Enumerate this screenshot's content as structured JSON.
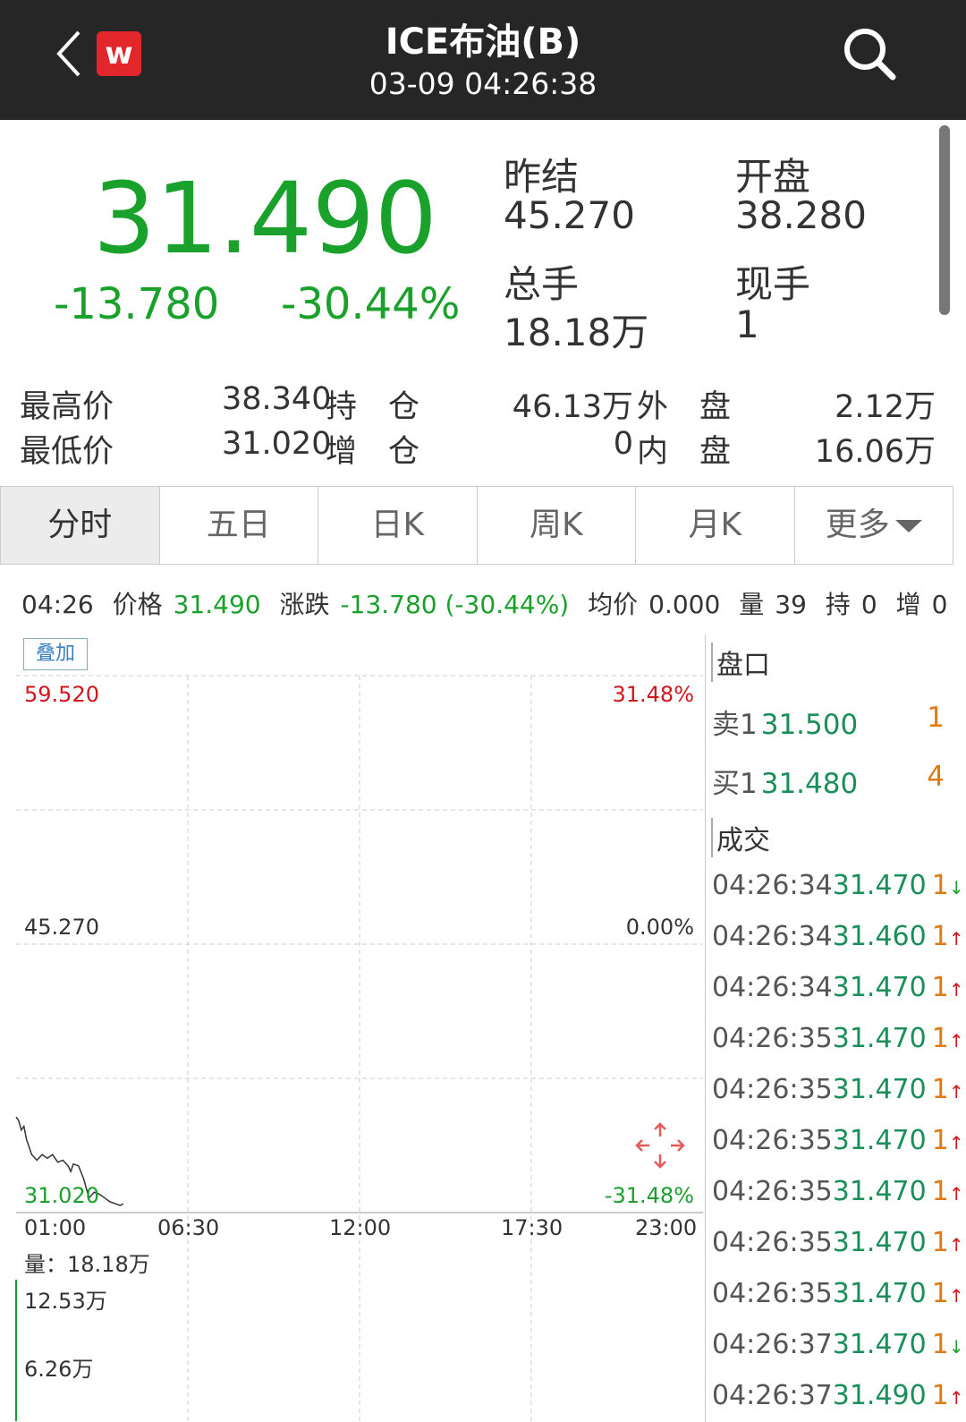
{
  "header": {
    "title": "ICE布油(B)",
    "datetime": "03-09 04:26:38",
    "logo_text": "w"
  },
  "quote": {
    "price": "31.490",
    "change": "-13.780",
    "change_pct": "-30.44%",
    "prev_settle_label": "昨结",
    "prev_settle": "45.270",
    "open_label": "开盘",
    "open": "38.280",
    "volume_label": "总手",
    "volume": "18.18万",
    "current_label": "现手",
    "current": "1",
    "high_label": "最高价",
    "high": "38.340",
    "low_label": "最低价",
    "low": "31.020",
    "oi_label": "持　仓",
    "oi": "46.13万",
    "oi_chg_label": "增　仓",
    "oi_chg": "0",
    "outer_label": "外　盘",
    "outer": "2.12万",
    "inner_label": "内　盘",
    "inner": "16.06万"
  },
  "tabs": [
    {
      "label": "分时",
      "active": true
    },
    {
      "label": "五日"
    },
    {
      "label": "日K"
    },
    {
      "label": "周K"
    },
    {
      "label": "月K"
    },
    {
      "label": "更多"
    }
  ],
  "info_bar": {
    "time": "04:26",
    "price_label": "价格",
    "price": "31.490",
    "chg_label": "涨跌",
    "chg": "-13.780 (-30.44%)",
    "avg_label": "均价",
    "avg": "0.000",
    "vol_label": "量",
    "vol": "39",
    "oi_label": "持",
    "oi": "0",
    "inc_label": "增",
    "inc": "0"
  },
  "chart_data": {
    "type": "line",
    "overlay_button": "叠加",
    "y_left_ticks": [
      "59.520",
      "45.270",
      "31.020"
    ],
    "y_right_ticks": [
      "31.48%",
      "0.00%",
      "-31.48%"
    ],
    "ylim": [
      31.02,
      59.52
    ],
    "x_ticks": [
      "01:00",
      "06:30",
      "12:00",
      "17:30",
      "23:00"
    ],
    "series": [
      {
        "x": [
          "01:00",
          "01:05",
          "01:10",
          "01:15",
          "01:20",
          "01:30",
          "01:40",
          "01:50",
          "02:00",
          "02:10",
          "02:20",
          "02:30",
          "02:40",
          "02:45",
          "02:50",
          "03:00",
          "03:10",
          "03:20",
          "03:30",
          "03:40",
          "03:50",
          "04:00",
          "04:10",
          "04:20",
          "04:26"
        ],
        "y": [
          36.1,
          35.9,
          35.4,
          35.6,
          34.9,
          34.1,
          33.8,
          34.1,
          33.9,
          34.1,
          33.7,
          33.8,
          33.5,
          33.2,
          33.6,
          33.5,
          32.8,
          31.8,
          32.1,
          32.0,
          31.8,
          31.6,
          31.5,
          31.4,
          31.49
        ]
      }
    ],
    "volume_label": "量：",
    "volume_total": "18.18万",
    "volume_ticks": [
      "12.53万",
      "6.26万"
    ],
    "colors": {
      "up": "#d0161b",
      "down": "#1aa12c",
      "line": "#333333"
    }
  },
  "orderbook": {
    "title": "盘口",
    "asks": [
      {
        "label": "卖1",
        "price": "31.500",
        "qty": "1"
      }
    ],
    "bids": [
      {
        "label": "买1",
        "price": "31.480",
        "qty": "4"
      }
    ]
  },
  "trades": {
    "title": "成交",
    "rows": [
      {
        "time": "04:26:34",
        "price": "31.470",
        "qty": "1",
        "dir": "down"
      },
      {
        "time": "04:26:34",
        "price": "31.460",
        "qty": "1",
        "dir": "up"
      },
      {
        "time": "04:26:34",
        "price": "31.470",
        "qty": "1",
        "dir": "up"
      },
      {
        "time": "04:26:35",
        "price": "31.470",
        "qty": "1",
        "dir": "up"
      },
      {
        "time": "04:26:35",
        "price": "31.470",
        "qty": "1",
        "dir": "up"
      },
      {
        "time": "04:26:35",
        "price": "31.470",
        "qty": "1",
        "dir": "up"
      },
      {
        "time": "04:26:35",
        "price": "31.470",
        "qty": "1",
        "dir": "up"
      },
      {
        "time": "04:26:35",
        "price": "31.470",
        "qty": "1",
        "dir": "up"
      },
      {
        "time": "04:26:35",
        "price": "31.470",
        "qty": "1",
        "dir": "up"
      },
      {
        "time": "04:26:37",
        "price": "31.470",
        "qty": "1",
        "dir": "down"
      },
      {
        "time": "04:26:37",
        "price": "31.490",
        "qty": "1",
        "dir": "up"
      }
    ]
  }
}
